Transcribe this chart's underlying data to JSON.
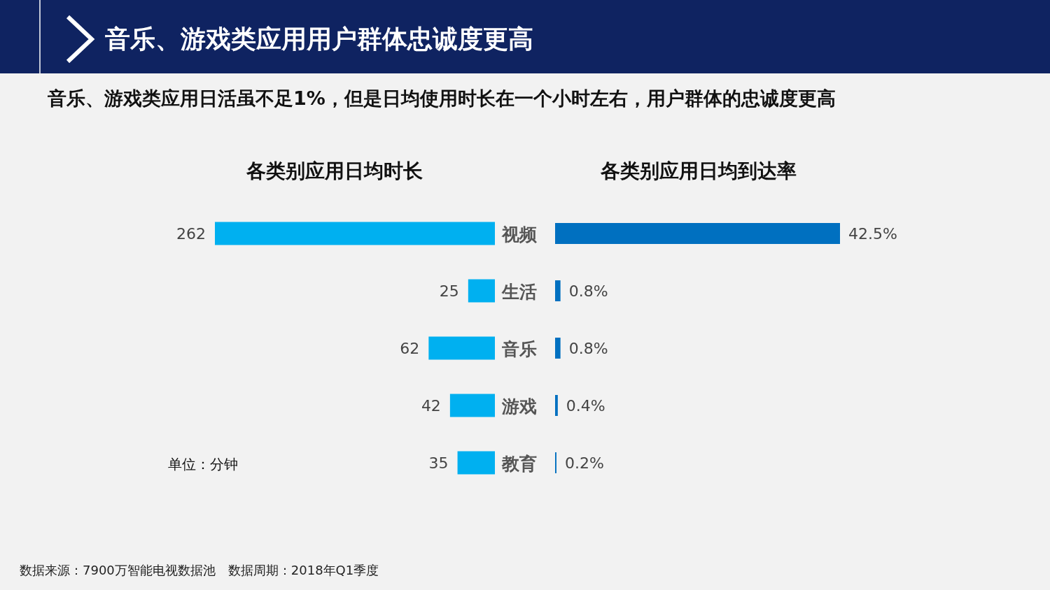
{
  "chart_data": [
    {
      "type": "other",
      "title": "音乐、游戏类应用用户群体忠诚度更高",
      "subtitle": "音乐、游戏类应用日活虽不足1%，但是日均使用时长在一个小时左右，用户群体的忠诚度更高",
      "annotations": [
        "数据来源：7900万智能电视数据池　数据周期：2018年Q1季度"
      ]
    },
    {
      "type": "bar",
      "orientation": "horizontal",
      "title": "各类别应用日均时长",
      "categories": [
        "视频",
        "生活",
        "音乐",
        "游戏",
        "教育"
      ],
      "values": [
        262,
        25,
        62,
        42,
        35
      ],
      "color": "#00b0f0",
      "data_labels": true,
      "annotations": [
        "单位：分钟"
      ]
    },
    {
      "type": "bar",
      "orientation": "horizontal",
      "title": "各类别应用日均到达率",
      "values": [
        42.5,
        0.8,
        0.8,
        0.4,
        0.2
      ],
      "value_labels": [
        "42.5%",
        "0.8%",
        "0.8%",
        "0.4%",
        "0.2%"
      ],
      "color": "#0070c0"
    }
  ]
}
